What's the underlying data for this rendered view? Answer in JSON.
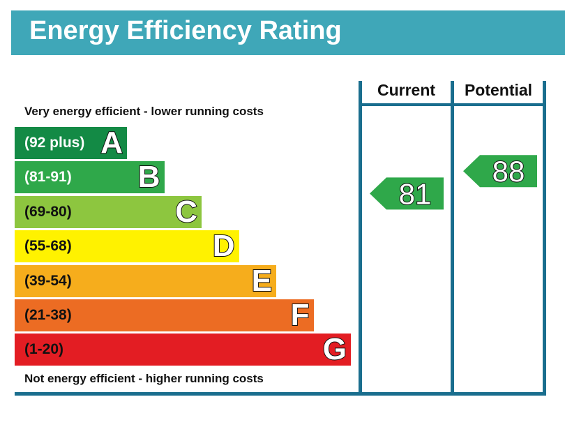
{
  "title": "Energy Efficiency Rating",
  "top_caption": "Very energy efficient - lower running costs",
  "bottom_caption": "Not energy efficient - higher running costs",
  "columns": {
    "current": "Current",
    "potential": "Potential"
  },
  "chart_data": {
    "type": "bar",
    "title": "Energy Efficiency Rating",
    "categories": [
      "A",
      "B",
      "C",
      "D",
      "E",
      "F",
      "G"
    ],
    "bands": [
      {
        "letter": "A",
        "range": "(92 plus)",
        "min": 92,
        "max": null,
        "color": "#138a45",
        "text_color": "#ffffff"
      },
      {
        "letter": "B",
        "range": "(81-91)",
        "min": 81,
        "max": 91,
        "color": "#2fa84a",
        "text_color": "#ffffff"
      },
      {
        "letter": "C",
        "range": "(69-80)",
        "min": 69,
        "max": 80,
        "color": "#8dc63f",
        "text_color": "#111111"
      },
      {
        "letter": "D",
        "range": "(55-68)",
        "min": 55,
        "max": 68,
        "color": "#fff200",
        "text_color": "#111111"
      },
      {
        "letter": "E",
        "range": "(39-54)",
        "min": 39,
        "max": 54,
        "color": "#f6ad1c",
        "text_color": "#111111"
      },
      {
        "letter": "F",
        "range": "(21-38)",
        "min": 21,
        "max": 38,
        "color": "#ec6c23",
        "text_color": "#111111"
      },
      {
        "letter": "G",
        "range": "(1-20)",
        "min": 1,
        "max": 20,
        "color": "#e31d23",
        "text_color": "#111111"
      }
    ],
    "series": [
      {
        "name": "Current",
        "value": 81,
        "band": "B",
        "color": "#2fa84a"
      },
      {
        "name": "Potential",
        "value": 88,
        "band": "B",
        "color": "#2fa84a"
      }
    ]
  }
}
